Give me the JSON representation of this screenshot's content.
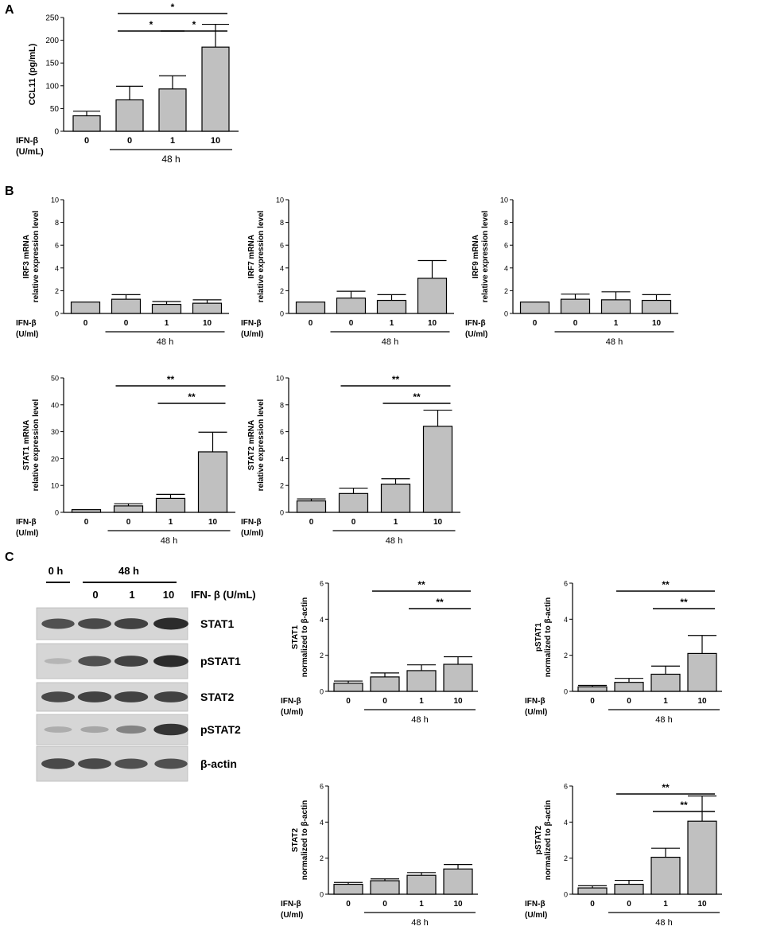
{
  "panels": {
    "a": "A",
    "b": "B",
    "c": "C"
  },
  "colors": {
    "bar": "#c0c0c0",
    "stroke": "#000000",
    "blot_bg": "#d6d6d6",
    "band": "#2c2c2c"
  },
  "treatment": {
    "label_cclmain": "IFN-β",
    "unit_cclmain": "(U/mL)",
    "label": "IFN-β",
    "unit": "(U/ml)",
    "doses": [
      "0",
      "0",
      "1",
      "10"
    ],
    "time": "48 h"
  },
  "blot": {
    "time_0": "0 h",
    "time_48": "48 h",
    "doses": [
      "0",
      "1",
      "10"
    ],
    "treatment": "IFN- β (U/mL)",
    "rows": [
      "STAT1",
      "pSTAT1",
      "STAT2",
      "pSTAT2",
      "β-actin"
    ],
    "intensity": [
      [
        0.75,
        0.8,
        0.85,
        1.0
      ],
      [
        0.05,
        0.75,
        0.85,
        1.0
      ],
      [
        0.8,
        0.85,
        0.85,
        0.85
      ],
      [
        0.1,
        0.15,
        0.4,
        0.95
      ],
      [
        0.8,
        0.8,
        0.75,
        0.75
      ]
    ]
  },
  "chart_data": [
    {
      "id": "ccl11",
      "type": "bar",
      "ylabel": "CCL11 (pg/mL)",
      "categories": [
        "0",
        "0",
        "1",
        "10"
      ],
      "values": [
        34,
        69,
        93,
        185
      ],
      "errors": [
        10,
        30,
        29,
        50
      ],
      "ylim": [
        0,
        250
      ],
      "yticks": [
        "0",
        "50",
        "100",
        "150",
        "200",
        "250"
      ],
      "significance": [
        {
          "from": 1,
          "to": 2,
          "label": "*"
        },
        {
          "from": 2,
          "to": 3,
          "label": "*"
        },
        {
          "from": 1,
          "to": 3,
          "label": "*"
        }
      ]
    },
    {
      "id": "irf3",
      "type": "bar",
      "ylabel": [
        "IRF3 mRNA",
        "relative expression level"
      ],
      "categories": [
        "0",
        "0",
        "1",
        "10"
      ],
      "values": [
        1.0,
        1.25,
        0.8,
        0.9
      ],
      "errors": [
        0,
        0.4,
        0.25,
        0.3
      ],
      "ylim": [
        0,
        10
      ],
      "yticks": [
        "0",
        "2",
        "4",
        "6",
        "8",
        "10"
      ],
      "significance": []
    },
    {
      "id": "irf7",
      "type": "bar",
      "ylabel": [
        "IRF7 mRNA",
        "relative expression level"
      ],
      "categories": [
        "0",
        "0",
        "1",
        "10"
      ],
      "values": [
        1.0,
        1.35,
        1.15,
        3.1
      ],
      "errors": [
        0,
        0.6,
        0.5,
        1.55
      ],
      "ylim": [
        0,
        10
      ],
      "yticks": [
        "0",
        "2",
        "4",
        "6",
        "8",
        "10"
      ],
      "significance": []
    },
    {
      "id": "irf9",
      "type": "bar",
      "ylabel": [
        "IRF9 mRNA",
        "relative expression level"
      ],
      "categories": [
        "0",
        "0",
        "1",
        "10"
      ],
      "values": [
        1.0,
        1.25,
        1.2,
        1.15
      ],
      "errors": [
        0,
        0.45,
        0.7,
        0.5
      ],
      "ylim": [
        0,
        10
      ],
      "yticks": [
        "0",
        "2",
        "4",
        "6",
        "8",
        "10"
      ],
      "significance": []
    },
    {
      "id": "stat1mrna",
      "type": "bar",
      "ylabel": [
        "STAT1 mRNA",
        "relative expression level"
      ],
      "categories": [
        "0",
        "0",
        "1",
        "10"
      ],
      "values": [
        1.0,
        2.4,
        5.2,
        22.5
      ],
      "errors": [
        0,
        0.8,
        1.5,
        7.3
      ],
      "ylim": [
        0,
        50
      ],
      "yticks": [
        "0",
        "10",
        "20",
        "30",
        "40",
        "50"
      ],
      "significance": [
        {
          "from": 2,
          "to": 3,
          "label": "**"
        },
        {
          "from": 1,
          "to": 3,
          "label": "**"
        }
      ]
    },
    {
      "id": "stat2mrna",
      "type": "bar",
      "ylabel": [
        "STAT2 mRNA",
        "relative expression level"
      ],
      "categories": [
        "0",
        "0",
        "1",
        "10"
      ],
      "values": [
        0.85,
        1.4,
        2.1,
        6.4
      ],
      "errors": [
        0.15,
        0.4,
        0.4,
        1.2
      ],
      "ylim": [
        0,
        10
      ],
      "yticks": [
        "0",
        "2",
        "4",
        "6",
        "8",
        "10"
      ],
      "significance": [
        {
          "from": 2,
          "to": 3,
          "label": "**"
        },
        {
          "from": 1,
          "to": 3,
          "label": "**"
        }
      ]
    },
    {
      "id": "stat1prot",
      "type": "bar",
      "ylabel": [
        "STAT1",
        "normalized to β-actin"
      ],
      "categories": [
        "0",
        "0",
        "1",
        "10"
      ],
      "values": [
        0.45,
        0.8,
        1.15,
        1.5
      ],
      "errors": [
        0.12,
        0.22,
        0.32,
        0.42
      ],
      "ylim": [
        0,
        6
      ],
      "yticks": [
        "0",
        "2",
        "4",
        "6"
      ],
      "significance": [
        {
          "from": 2,
          "to": 3,
          "label": "**"
        },
        {
          "from": 1,
          "to": 3,
          "label": "**"
        }
      ]
    },
    {
      "id": "pstat1",
      "type": "bar",
      "ylabel": [
        "pSTAT1",
        "normalized to β-actin"
      ],
      "categories": [
        "0",
        "0",
        "1",
        "10"
      ],
      "values": [
        0.25,
        0.5,
        0.95,
        2.1
      ],
      "errors": [
        0.08,
        0.22,
        0.45,
        1.0
      ],
      "ylim": [
        0,
        6
      ],
      "yticks": [
        "0",
        "2",
        "4",
        "6"
      ],
      "significance": [
        {
          "from": 2,
          "to": 3,
          "label": "**"
        },
        {
          "from": 1,
          "to": 3,
          "label": "**"
        }
      ]
    },
    {
      "id": "stat2prot",
      "type": "bar",
      "ylabel": [
        "STAT2",
        "normalized to β-actin"
      ],
      "categories": [
        "0",
        "0",
        "1",
        "10"
      ],
      "values": [
        0.55,
        0.75,
        1.05,
        1.4
      ],
      "errors": [
        0.1,
        0.1,
        0.15,
        0.25
      ],
      "ylim": [
        0,
        6
      ],
      "yticks": [
        "0",
        "2",
        "4",
        "6"
      ],
      "significance": []
    },
    {
      "id": "pstat2",
      "type": "bar",
      "ylabel": [
        "pSTAT2",
        "normalized to β-actin"
      ],
      "categories": [
        "0",
        "0",
        "1",
        "10"
      ],
      "values": [
        0.35,
        0.55,
        2.05,
        4.05
      ],
      "errors": [
        0.12,
        0.22,
        0.5,
        1.4
      ],
      "ylim": [
        0,
        6
      ],
      "yticks": [
        "0",
        "2",
        "4",
        "6"
      ],
      "significance": [
        {
          "from": 2,
          "to": 3,
          "label": "**"
        },
        {
          "from": 1,
          "to": 3,
          "label": "**"
        }
      ]
    }
  ]
}
